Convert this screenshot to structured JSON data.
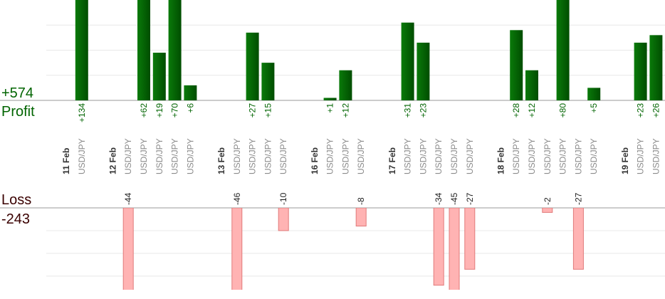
{
  "summary": {
    "profit_total": 574,
    "profit_label": "+574",
    "profit_text": "Profit",
    "loss_text": "Loss",
    "loss_total": -243
  },
  "chart_data": {
    "type": "bar",
    "ylim": [
      0,
      40
    ],
    "yticks": [
      10,
      20,
      30
    ],
    "y2lim": [
      -36,
      0
    ],
    "y2ticks": [
      -30,
      -20,
      -10
    ],
    "profit_color": "#006400",
    "loss_color": "#ffb3b3",
    "grid": true,
    "days": [
      {
        "date": "11 Feb",
        "trades": [
          {
            "symbol": "USD/JPY",
            "value": 134,
            "value_label": "+134"
          }
        ]
      },
      {
        "date": "12 Feb",
        "trades": [
          {
            "symbol": "USD/JPY",
            "value": -44
          },
          {
            "symbol": "USD/JPY",
            "value": 62,
            "value_label": "+62"
          },
          {
            "symbol": "USD/JPY",
            "value": 19,
            "value_label": "+19"
          },
          {
            "symbol": "USD/JPY",
            "value": 70,
            "value_label": "+70"
          },
          {
            "symbol": "USD/JPY",
            "value": 6,
            "value_label": "+6"
          }
        ]
      },
      {
        "date": "13 Feb",
        "trades": [
          {
            "symbol": "USD/JPY",
            "value": -46
          },
          {
            "symbol": "USD/JPY",
            "value": 27,
            "value_label": "+27"
          },
          {
            "symbol": "USD/JPY",
            "value": 15,
            "value_label": "+15"
          },
          {
            "symbol": "USD/JPY",
            "value": -10
          }
        ]
      },
      {
        "date": "16 Feb",
        "trades": [
          {
            "symbol": "USD/JPY",
            "value": 1,
            "value_label": "+1"
          },
          {
            "symbol": "USD/JPY",
            "value": 12,
            "value_label": "+12"
          },
          {
            "symbol": "USD/JPY",
            "value": -8
          }
        ]
      },
      {
        "date": "17 Feb",
        "trades": [
          {
            "symbol": "USD/JPY",
            "value": 31,
            "value_label": "+31"
          },
          {
            "symbol": "USD/JPY",
            "value": 23,
            "value_label": "+23"
          },
          {
            "symbol": "USD/JPY",
            "value": -34
          },
          {
            "symbol": "USD/JPY",
            "value": -45
          },
          {
            "symbol": "USD/JPY",
            "value": -27
          }
        ]
      },
      {
        "date": "18 Feb",
        "trades": [
          {
            "symbol": "USD/JPY",
            "value": 28,
            "value_label": "+28"
          },
          {
            "symbol": "USD/JPY",
            "value": 12,
            "value_label": "+12"
          },
          {
            "symbol": "USD/JPY",
            "value": -2
          },
          {
            "symbol": "USD/JPY",
            "value": 80,
            "value_label": "+80"
          },
          {
            "symbol": "USD/JPY",
            "value": -27
          },
          {
            "symbol": "USD/JPY",
            "value": 5,
            "value_label": "+5"
          }
        ]
      },
      {
        "date": "19 Feb",
        "trades": [
          {
            "symbol": "USD/JPY",
            "value": 23,
            "value_label": "+23"
          },
          {
            "symbol": "USD/JPY",
            "value": 26,
            "value_label": "+26"
          }
        ]
      }
    ]
  }
}
